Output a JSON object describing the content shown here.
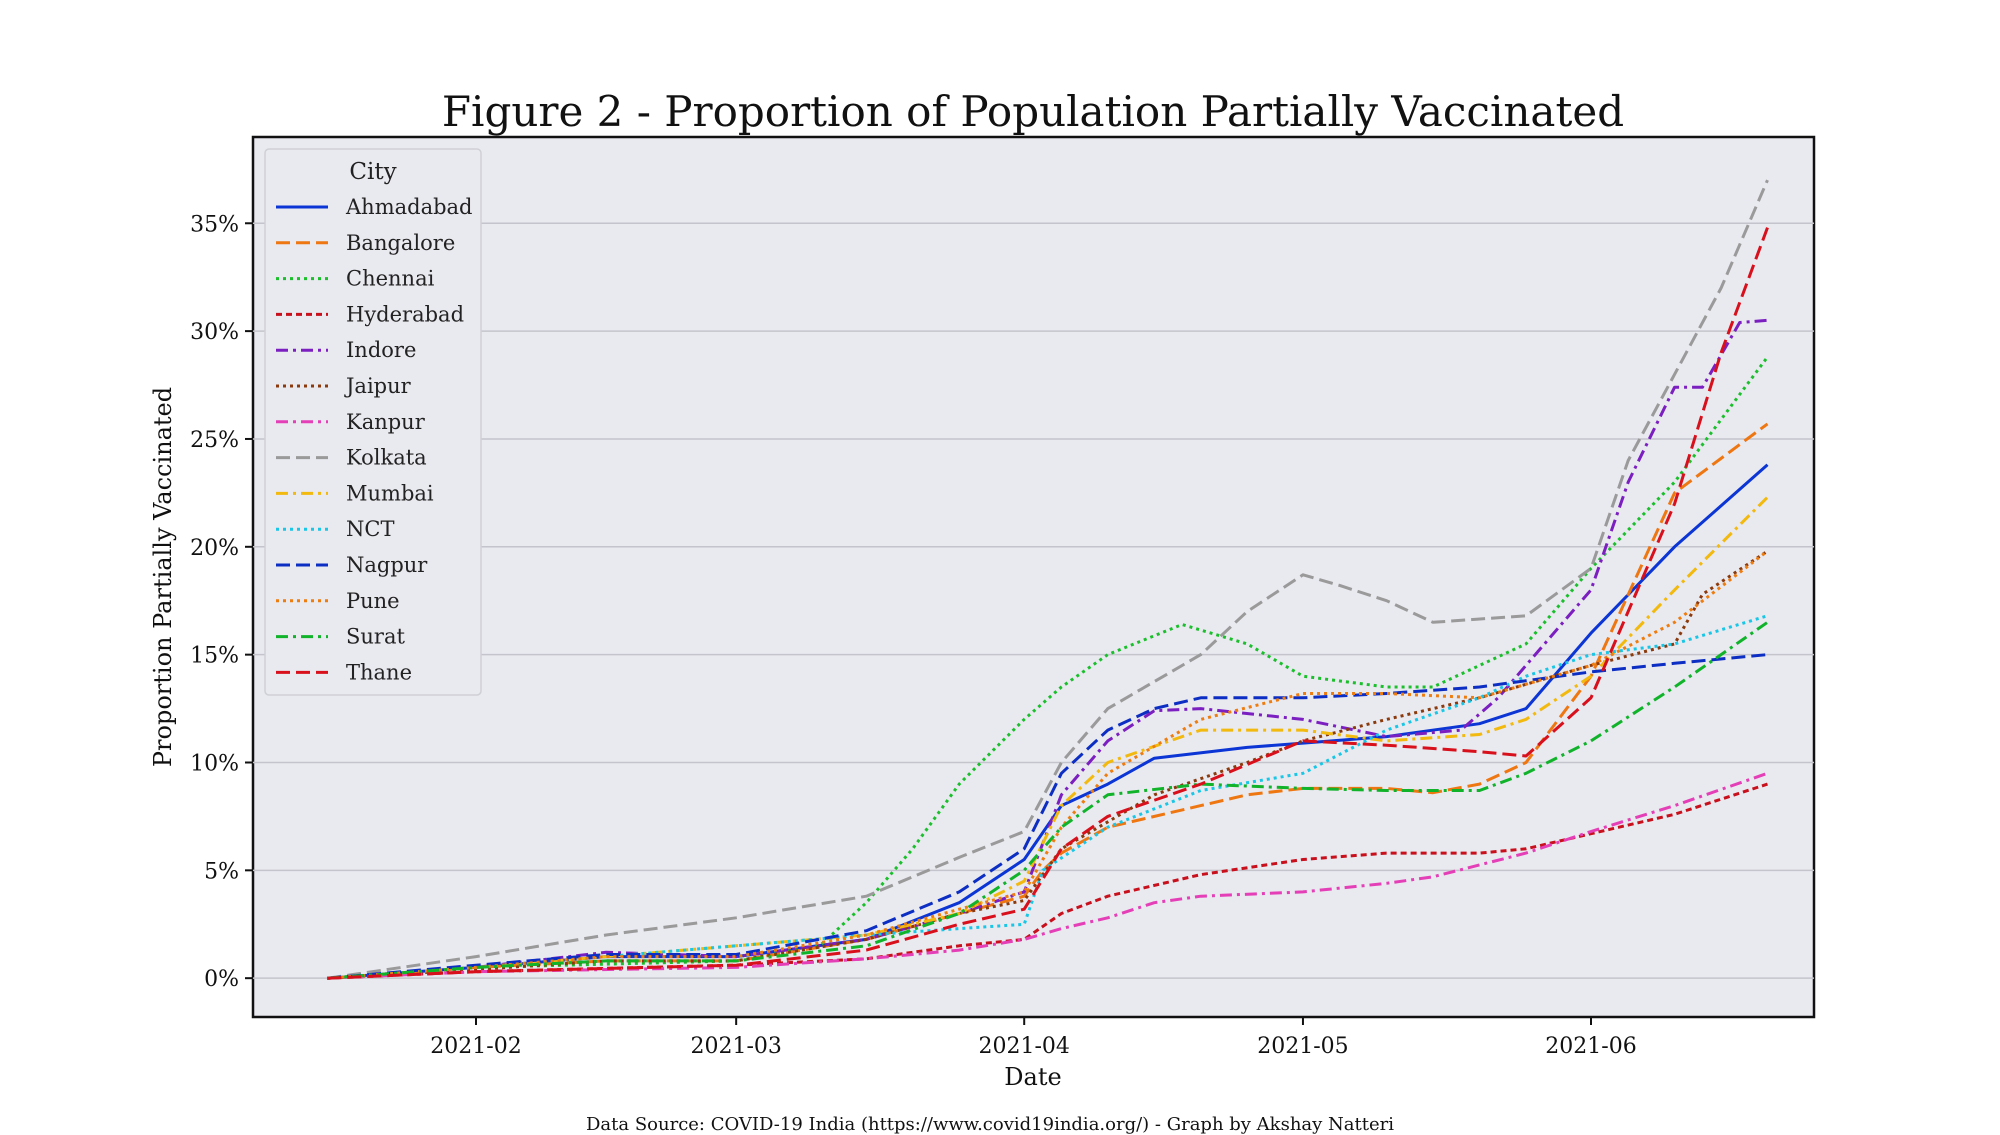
{
  "chart_data": {
    "type": "line",
    "title": "Figure 2 - Proportion of Population Partially Vaccinated",
    "xlabel": "Date",
    "ylabel": "Proportion Partially Vaccinated",
    "x_ticks": [
      "2021-02",
      "2021-03",
      "2021-04",
      "2021-05",
      "2021-06"
    ],
    "y_ticks": [
      "0%",
      "5%",
      "10%",
      "15%",
      "20%",
      "25%",
      "30%",
      "35%"
    ],
    "ylim": [
      -1.8,
      39.0
    ],
    "xlim": [
      "2021-01-08",
      "2021-06-25"
    ],
    "grid": "horizontal",
    "legend": {
      "title": "City",
      "placement": "top-left"
    },
    "source": "Data Source:  COVID-19 India (https://www.covid19india.org/) - Graph by Akshay Natteri",
    "series": [
      {
        "name": "Ahmadabad",
        "color": "#0b35d4",
        "dash": "solid",
        "points": [
          [
            "2021-01-16",
            0
          ],
          [
            "2021-02-01",
            0.5
          ],
          [
            "2021-02-15",
            1.0
          ],
          [
            "2021-03-01",
            1.0
          ],
          [
            "2021-03-15",
            1.8
          ],
          [
            "2021-03-25",
            3.5
          ],
          [
            "2021-04-01",
            5.5
          ],
          [
            "2021-04-05",
            8.0
          ],
          [
            "2021-04-10",
            9.0
          ],
          [
            "2021-04-15",
            10.2
          ],
          [
            "2021-04-25",
            10.7
          ],
          [
            "2021-05-01",
            10.9
          ],
          [
            "2021-05-10",
            11.2
          ],
          [
            "2021-05-20",
            11.8
          ],
          [
            "2021-05-25",
            12.5
          ],
          [
            "2021-06-01",
            16.0
          ],
          [
            "2021-06-10",
            20.0
          ],
          [
            "2021-06-20",
            23.8
          ]
        ]
      },
      {
        "name": "Bangalore",
        "color": "#ee7712",
        "dash": "dashed",
        "points": [
          [
            "2021-01-16",
            0
          ],
          [
            "2021-02-01",
            0.5
          ],
          [
            "2021-02-15",
            0.8
          ],
          [
            "2021-03-01",
            0.8
          ],
          [
            "2021-03-15",
            1.8
          ],
          [
            "2021-03-25",
            3.0
          ],
          [
            "2021-04-01",
            3.8
          ],
          [
            "2021-04-03",
            5.0
          ],
          [
            "2021-04-05",
            5.8
          ],
          [
            "2021-04-10",
            7.0
          ],
          [
            "2021-04-20",
            8.0
          ],
          [
            "2021-04-25",
            8.5
          ],
          [
            "2021-05-01",
            8.8
          ],
          [
            "2021-05-10",
            8.8
          ],
          [
            "2021-05-15",
            8.6
          ],
          [
            "2021-05-20",
            9.0
          ],
          [
            "2021-05-25",
            10.0
          ],
          [
            "2021-06-01",
            14.0
          ],
          [
            "2021-06-10",
            22.5
          ],
          [
            "2021-06-20",
            25.7
          ]
        ]
      },
      {
        "name": "Chennai",
        "color": "#1bbf2c",
        "dash": "dotted",
        "points": [
          [
            "2021-01-16",
            0
          ],
          [
            "2021-02-01",
            0.5
          ],
          [
            "2021-03-01",
            0.8
          ],
          [
            "2021-03-10",
            1.5
          ],
          [
            "2021-03-15",
            3.5
          ],
          [
            "2021-03-20",
            6.0
          ],
          [
            "2021-03-25",
            9.0
          ],
          [
            "2021-04-01",
            12.0
          ],
          [
            "2021-04-05",
            13.5
          ],
          [
            "2021-04-10",
            15.0
          ],
          [
            "2021-04-18",
            16.4
          ],
          [
            "2021-04-25",
            15.5
          ],
          [
            "2021-05-01",
            14.0
          ],
          [
            "2021-05-10",
            13.5
          ],
          [
            "2021-05-15",
            13.5
          ],
          [
            "2021-05-25",
            15.5
          ],
          [
            "2021-06-01",
            19.0
          ],
          [
            "2021-06-10",
            23.0
          ],
          [
            "2021-06-20",
            28.8
          ]
        ]
      },
      {
        "name": "Hyderabad",
        "color": "#c8101c",
        "dash": "densely-dashed",
        "points": [
          [
            "2021-01-16",
            0
          ],
          [
            "2021-02-01",
            0.3
          ],
          [
            "2021-03-01",
            0.6
          ],
          [
            "2021-03-15",
            0.9
          ],
          [
            "2021-03-25",
            1.5
          ],
          [
            "2021-04-01",
            1.8
          ],
          [
            "2021-04-05",
            3.0
          ],
          [
            "2021-04-10",
            3.8
          ],
          [
            "2021-04-20",
            4.8
          ],
          [
            "2021-05-01",
            5.5
          ],
          [
            "2021-05-10",
            5.8
          ],
          [
            "2021-05-20",
            5.8
          ],
          [
            "2021-05-25",
            6.0
          ],
          [
            "2021-06-01",
            6.7
          ],
          [
            "2021-06-10",
            7.6
          ],
          [
            "2021-06-20",
            9.0
          ]
        ]
      },
      {
        "name": "Indore",
        "color": "#7b1fc0",
        "dash": "dashdot",
        "points": [
          [
            "2021-01-16",
            0
          ],
          [
            "2021-02-01",
            0.5
          ],
          [
            "2021-02-15",
            1.2
          ],
          [
            "2021-03-01",
            1.0
          ],
          [
            "2021-03-15",
            1.8
          ],
          [
            "2021-03-25",
            3.0
          ],
          [
            "2021-04-01",
            4.0
          ],
          [
            "2021-04-05",
            8.5
          ],
          [
            "2021-04-10",
            11.0
          ],
          [
            "2021-04-15",
            12.4
          ],
          [
            "2021-04-20",
            12.5
          ],
          [
            "2021-05-01",
            12.0
          ],
          [
            "2021-05-10",
            11.2
          ],
          [
            "2021-05-18",
            11.5
          ],
          [
            "2021-05-22",
            13.0
          ],
          [
            "2021-06-01",
            18.0
          ],
          [
            "2021-06-05",
            23.0
          ],
          [
            "2021-06-10",
            27.4
          ],
          [
            "2021-06-13",
            27.4
          ],
          [
            "2021-06-17",
            30.4
          ],
          [
            "2021-06-20",
            30.5
          ]
        ]
      },
      {
        "name": "Jaipur",
        "color": "#8a3a0c",
        "dash": "dotted",
        "points": [
          [
            "2021-01-16",
            0
          ],
          [
            "2021-02-01",
            0.4
          ],
          [
            "2021-02-15",
            0.8
          ],
          [
            "2021-03-01",
            0.8
          ],
          [
            "2021-03-15",
            1.8
          ],
          [
            "2021-03-25",
            3.0
          ],
          [
            "2021-04-01",
            3.6
          ],
          [
            "2021-04-05",
            6.0
          ],
          [
            "2021-04-15",
            8.5
          ],
          [
            "2021-04-25",
            10.0
          ],
          [
            "2021-05-01",
            11.0
          ],
          [
            "2021-05-10",
            12.0
          ],
          [
            "2021-05-20",
            13.0
          ],
          [
            "2021-06-01",
            14.5
          ],
          [
            "2021-06-10",
            15.5
          ],
          [
            "2021-06-13",
            17.8
          ],
          [
            "2021-06-20",
            19.8
          ]
        ]
      },
      {
        "name": "Kanpur",
        "color": "#e43fb7",
        "dash": "dashdot",
        "points": [
          [
            "2021-01-16",
            0
          ],
          [
            "2021-02-01",
            0.3
          ],
          [
            "2021-03-01",
            0.5
          ],
          [
            "2021-03-15",
            0.9
          ],
          [
            "2021-03-25",
            1.3
          ],
          [
            "2021-04-01",
            1.8
          ],
          [
            "2021-04-05",
            2.3
          ],
          [
            "2021-04-10",
            2.8
          ],
          [
            "2021-04-15",
            3.5
          ],
          [
            "2021-04-20",
            3.8
          ],
          [
            "2021-05-01",
            4.0
          ],
          [
            "2021-05-10",
            4.4
          ],
          [
            "2021-05-15",
            4.7
          ],
          [
            "2021-05-25",
            5.8
          ],
          [
            "2021-06-01",
            6.8
          ],
          [
            "2021-06-10",
            8.0
          ],
          [
            "2021-06-20",
            9.5
          ]
        ]
      },
      {
        "name": "Kolkata",
        "color": "#9a9a9a",
        "dash": "dashed",
        "points": [
          [
            "2021-01-16",
            0
          ],
          [
            "2021-02-01",
            1.0
          ],
          [
            "2021-02-15",
            2.0
          ],
          [
            "2021-03-01",
            2.8
          ],
          [
            "2021-03-15",
            3.8
          ],
          [
            "2021-03-25",
            5.6
          ],
          [
            "2021-04-01",
            6.8
          ],
          [
            "2021-04-05",
            10.0
          ],
          [
            "2021-04-10",
            12.5
          ],
          [
            "2021-04-20",
            15.0
          ],
          [
            "2021-04-25",
            17.0
          ],
          [
            "2021-05-01",
            18.7
          ],
          [
            "2021-05-05",
            18.2
          ],
          [
            "2021-05-10",
            17.5
          ],
          [
            "2021-05-15",
            16.5
          ],
          [
            "2021-05-25",
            16.8
          ],
          [
            "2021-06-01",
            19.0
          ],
          [
            "2021-06-05",
            24.0
          ],
          [
            "2021-06-10",
            28.0
          ],
          [
            "2021-06-15",
            32.0
          ],
          [
            "2021-06-20",
            37.0
          ]
        ]
      },
      {
        "name": "Mumbai",
        "color": "#f2b90f",
        "dash": "dashdot",
        "points": [
          [
            "2021-01-16",
            0
          ],
          [
            "2021-02-01",
            0.5
          ],
          [
            "2021-02-15",
            1.0
          ],
          [
            "2021-03-01",
            1.5
          ],
          [
            "2021-03-15",
            2.0
          ],
          [
            "2021-03-25",
            3.0
          ],
          [
            "2021-04-01",
            4.5
          ],
          [
            "2021-04-05",
            8.0
          ],
          [
            "2021-04-10",
            10.0
          ],
          [
            "2021-04-20",
            11.5
          ],
          [
            "2021-05-01",
            11.5
          ],
          [
            "2021-05-10",
            11.0
          ],
          [
            "2021-05-20",
            11.3
          ],
          [
            "2021-05-25",
            12.0
          ],
          [
            "2021-06-01",
            14.0
          ],
          [
            "2021-06-10",
            18.0
          ],
          [
            "2021-06-20",
            22.3
          ]
        ]
      },
      {
        "name": "NCT",
        "color": "#1ac6e5",
        "dash": "dotted",
        "points": [
          [
            "2021-01-16",
            0
          ],
          [
            "2021-02-01",
            0.5
          ],
          [
            "2021-02-15",
            1.0
          ],
          [
            "2021-03-01",
            1.5
          ],
          [
            "2021-03-15",
            2.0
          ],
          [
            "2021-03-25",
            2.3
          ],
          [
            "2021-04-01",
            2.5
          ],
          [
            "2021-04-03",
            5.0
          ],
          [
            "2021-04-10",
            7.0
          ],
          [
            "2021-04-20",
            8.7
          ],
          [
            "2021-05-01",
            9.5
          ],
          [
            "2021-05-10",
            11.5
          ],
          [
            "2021-05-20",
            13.0
          ],
          [
            "2021-05-25",
            14.0
          ],
          [
            "2021-06-01",
            15.0
          ],
          [
            "2021-06-10",
            15.5
          ],
          [
            "2021-06-20",
            16.8
          ]
        ]
      },
      {
        "name": "Nagpur",
        "color": "#0d2ec2",
        "dash": "dashed",
        "points": [
          [
            "2021-01-16",
            0
          ],
          [
            "2021-02-01",
            0.6
          ],
          [
            "2021-02-15",
            1.1
          ],
          [
            "2021-03-01",
            1.1
          ],
          [
            "2021-03-15",
            2.2
          ],
          [
            "2021-03-25",
            4.0
          ],
          [
            "2021-04-01",
            6.0
          ],
          [
            "2021-04-05",
            9.5
          ],
          [
            "2021-04-10",
            11.5
          ],
          [
            "2021-04-15",
            12.5
          ],
          [
            "2021-04-20",
            13.0
          ],
          [
            "2021-05-01",
            13.0
          ],
          [
            "2021-05-10",
            13.2
          ],
          [
            "2021-05-20",
            13.5
          ],
          [
            "2021-06-01",
            14.2
          ],
          [
            "2021-06-10",
            14.6
          ],
          [
            "2021-06-20",
            15.0
          ]
        ]
      },
      {
        "name": "Pune",
        "color": "#ee7d10",
        "dash": "dotted",
        "points": [
          [
            "2021-01-16",
            0
          ],
          [
            "2021-02-01",
            0.5
          ],
          [
            "2021-02-15",
            1.0
          ],
          [
            "2021-03-01",
            1.0
          ],
          [
            "2021-03-15",
            2.0
          ],
          [
            "2021-03-25",
            3.2
          ],
          [
            "2021-04-01",
            4.0
          ],
          [
            "2021-04-05",
            7.0
          ],
          [
            "2021-04-10",
            9.5
          ],
          [
            "2021-04-20",
            12.0
          ],
          [
            "2021-05-01",
            13.2
          ],
          [
            "2021-05-10",
            13.2
          ],
          [
            "2021-05-20",
            13.0
          ],
          [
            "2021-06-01",
            14.5
          ],
          [
            "2021-06-10",
            16.5
          ],
          [
            "2021-06-20",
            19.8
          ]
        ]
      },
      {
        "name": "Surat",
        "color": "#10b32a",
        "dash": "dashdot",
        "points": [
          [
            "2021-01-16",
            0
          ],
          [
            "2021-02-01",
            0.5
          ],
          [
            "2021-02-15",
            0.8
          ],
          [
            "2021-03-01",
            0.8
          ],
          [
            "2021-03-15",
            1.5
          ],
          [
            "2021-03-25",
            3.0
          ],
          [
            "2021-04-01",
            5.0
          ],
          [
            "2021-04-05",
            7.0
          ],
          [
            "2021-04-10",
            8.5
          ],
          [
            "2021-04-20",
            9.0
          ],
          [
            "2021-05-01",
            8.8
          ],
          [
            "2021-05-10",
            8.7
          ],
          [
            "2021-05-20",
            8.7
          ],
          [
            "2021-05-25",
            9.5
          ],
          [
            "2021-06-01",
            11.0
          ],
          [
            "2021-06-10",
            13.5
          ],
          [
            "2021-06-20",
            16.5
          ]
        ]
      },
      {
        "name": "Thane",
        "color": "#d8101c",
        "dash": "dashed",
        "points": [
          [
            "2021-01-16",
            0
          ],
          [
            "2021-02-01",
            0.3
          ],
          [
            "2021-03-01",
            0.6
          ],
          [
            "2021-03-15",
            1.3
          ],
          [
            "2021-03-25",
            2.5
          ],
          [
            "2021-04-01",
            3.2
          ],
          [
            "2021-04-05",
            6.0
          ],
          [
            "2021-04-10",
            7.5
          ],
          [
            "2021-04-20",
            9.0
          ],
          [
            "2021-05-01",
            11.0
          ],
          [
            "2021-05-10",
            10.8
          ],
          [
            "2021-05-20",
            10.5
          ],
          [
            "2021-05-25",
            10.3
          ],
          [
            "2021-06-01",
            13.0
          ],
          [
            "2021-06-10",
            22.0
          ],
          [
            "2021-06-15",
            29.0
          ],
          [
            "2021-06-20",
            34.8
          ]
        ]
      }
    ]
  }
}
